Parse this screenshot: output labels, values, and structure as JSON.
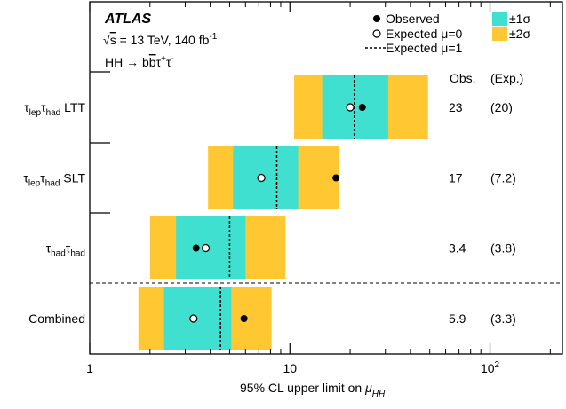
{
  "chart_data": {
    "type": "limit-bands",
    "x_scale": "log",
    "xlim": [
      1,
      230
    ],
    "x_ticks": [
      {
        "value": 1,
        "label": "1"
      },
      {
        "value": 10,
        "label": "10"
      },
      {
        "value": 100,
        "label": "10",
        "exponent": "2"
      }
    ],
    "x_minor_ticks": [
      2,
      3,
      4,
      5,
      6,
      7,
      8,
      9,
      20,
      30,
      40,
      50,
      60,
      70,
      80,
      90,
      200
    ],
    "xlabel": {
      "prefix": "95% CL upper limit on ",
      "symbol": "μ",
      "subscript": "HH"
    },
    "experiment": "ATLAS",
    "energy_text": {
      "root": "√",
      "s": "s",
      "rest": " = 13 TeV, 140 fb",
      "sup": "-1"
    },
    "process_text": {
      "lead": "HH → b",
      "bbar": "b",
      "tau1": "τ",
      "tau1_sup": "+",
      "tau2": "τ",
      "tau2_sup": "-"
    },
    "legend": {
      "observed": "Observed",
      "expected_mu0": "Expected μ=0",
      "expected_mu1": "Expected μ=1",
      "sigma1": "±1σ",
      "sigma2": "±2σ"
    },
    "column_headers": {
      "obs": "Obs.",
      "exp": "(Exp.)"
    },
    "colors": {
      "band1": "#40e0d0",
      "band2": "#ffc832",
      "marker": "#000000"
    },
    "categories": [
      {
        "name": "τ",
        "sub1": "lep",
        "name2": "τ",
        "sub2": "had",
        "suffix": " LTT",
        "observed": 23,
        "expected": 20,
        "expected_mu1": 21,
        "band1": [
          14.5,
          31
        ],
        "band2": [
          10.5,
          49
        ],
        "obs_text": "23",
        "exp_text": "(20)"
      },
      {
        "name": "τ",
        "sub1": "lep",
        "name2": "τ",
        "sub2": "had",
        "suffix": " SLT",
        "observed": 17,
        "expected": 7.2,
        "expected_mu1": 8.6,
        "band1": [
          5.2,
          11
        ],
        "band2": [
          3.9,
          17.5
        ],
        "obs_text": "17",
        "exp_text": "(7.2)"
      },
      {
        "name": "τ",
        "sub1": "had",
        "name2": "τ",
        "sub2": "had",
        "suffix": "",
        "observed": 3.4,
        "expected": 3.8,
        "expected_mu1": 5.0,
        "band1": [
          2.7,
          6.0
        ],
        "band2": [
          2.0,
          9.5
        ],
        "obs_text": "3.4",
        "exp_text": "(3.8)"
      },
      {
        "name": "Combined",
        "sub1": "",
        "name2": "",
        "sub2": "",
        "suffix": "",
        "observed": 5.9,
        "expected": 3.3,
        "expected_mu1": 4.5,
        "band1": [
          2.35,
          5.1
        ],
        "band2": [
          1.75,
          8.1
        ],
        "obs_text": "5.9",
        "exp_text": "(3.3)"
      }
    ]
  }
}
